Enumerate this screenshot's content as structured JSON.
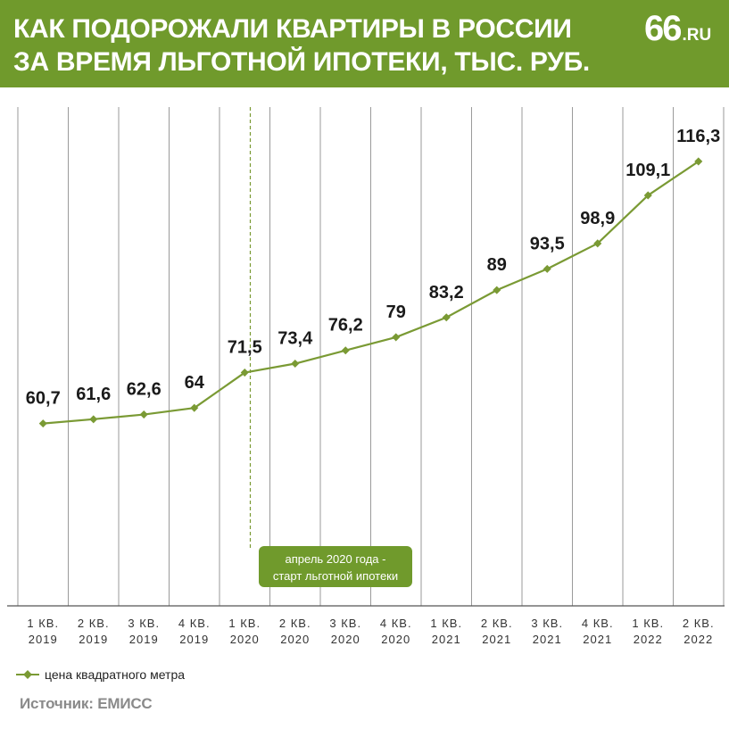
{
  "header": {
    "title_line1": "КАК ПОДОРОЖАЛИ КВАРТИРЫ В РОССИИ",
    "title_line2": "ЗА ВРЕМЯ ЛЬГОТНОЙ ИПОТЕКИ, ТЫС. РУБ.",
    "logo_number": "66",
    "logo_suffix": ".RU"
  },
  "legend": {
    "label": "цена квадратного метра"
  },
  "source": "Источник: ЕМИСС",
  "annotation": {
    "line1": "апрель 2020 года -",
    "line2": "старт льготной ипотеки"
  },
  "colors": {
    "brand_green": "#709a2c",
    "series_line": "#7a9a34",
    "grid": "#9a9a9a",
    "label_text": "#1a1a1a"
  },
  "chart_data": {
    "type": "line",
    "title": "КАК ПОДОРОЖАЛИ КВАРТИРЫ В РОССИИ ЗА ВРЕМЯ ЛЬГОТНОЙ ИПОТЕКИ, ТЫС. РУБ.",
    "categories": [
      [
        "1 КВ.",
        "2019"
      ],
      [
        "2 КВ.",
        "2019"
      ],
      [
        "3 КВ.",
        "2019"
      ],
      [
        "4 КВ.",
        "2019"
      ],
      [
        "1 КВ.",
        "2020"
      ],
      [
        "2 КВ.",
        "2020"
      ],
      [
        "3 КВ.",
        "2020"
      ],
      [
        "4 КВ.",
        "2020"
      ],
      [
        "1 КВ.",
        "2021"
      ],
      [
        "2 КВ.",
        "2021"
      ],
      [
        "3 КВ.",
        "2021"
      ],
      [
        "4 КВ.",
        "2021"
      ],
      [
        "1 КВ.",
        "2022"
      ],
      [
        "2 КВ.",
        "2022"
      ]
    ],
    "series": [
      {
        "name": "цена квадратного метра",
        "values": [
          60.7,
          61.6,
          62.6,
          64,
          71.5,
          73.4,
          76.2,
          79,
          83.2,
          89,
          93.5,
          98.9,
          109.1,
          116.3
        ],
        "labels": [
          "60,7",
          "61,6",
          "62,6",
          "64",
          "71,5",
          "73,4",
          "76,2",
          "79",
          "83,2",
          "89",
          "93,5",
          "98,9",
          "109,1",
          "116,3"
        ]
      }
    ],
    "ylim": [
      22,
      132
    ],
    "grid": "vertical",
    "legend_position": "bottom-left",
    "marker_event": {
      "between_categories": [
        4,
        5
      ],
      "text": "апрель 2020 года - старт льготной ипотеки"
    }
  }
}
